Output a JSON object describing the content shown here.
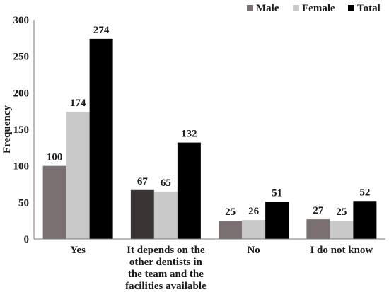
{
  "chart_data": {
    "type": "bar",
    "categories": [
      [
        "Yes"
      ],
      [
        "It depends on the",
        "other dentists in",
        "the team and the",
        "facilities available"
      ],
      [
        "No"
      ],
      [
        "I do not know"
      ]
    ],
    "series": [
      {
        "name": "Male",
        "values": [
          100,
          67,
          25,
          27
        ],
        "color": "#7b7071"
      },
      {
        "name": "Female",
        "values": [
          174,
          65,
          26,
          25
        ],
        "color": "#c9c9c9"
      },
      {
        "name": "Total",
        "values": [
          274,
          132,
          51,
          52
        ],
        "color": "#000000"
      }
    ],
    "dark_bar_override": {
      "category_index": 1,
      "series_index": 0,
      "color": "#3a3434"
    },
    "ylabel": "Frequency",
    "xlabel": "",
    "title": "",
    "ylim": [
      0,
      300
    ],
    "yticks": [
      0,
      50,
      100,
      150,
      200,
      250,
      300
    ],
    "grid": false,
    "legend_position": "top-right",
    "data_labels": true
  }
}
